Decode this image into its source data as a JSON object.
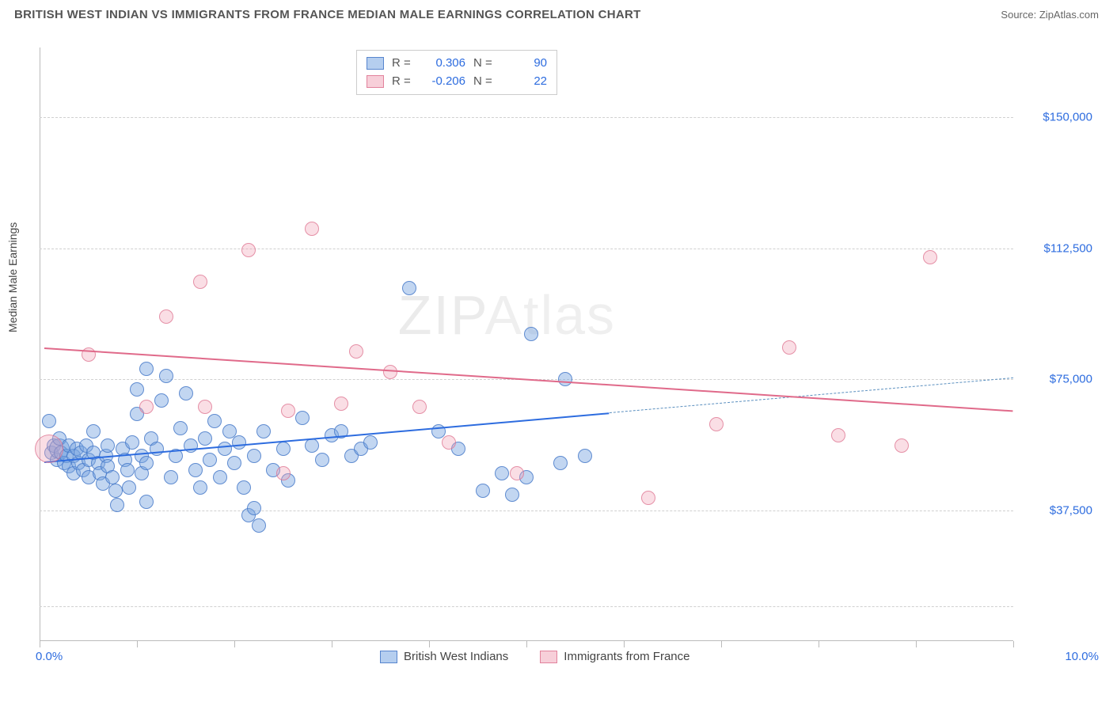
{
  "header": {
    "title": "BRITISH WEST INDIAN VS IMMIGRANTS FROM FRANCE MEDIAN MALE EARNINGS CORRELATION CHART",
    "source_label": "Source:",
    "source_value": "ZipAtlas.com"
  },
  "chart": {
    "type": "scatter",
    "ylabel": "Median Male Earnings",
    "background_color": "#ffffff",
    "grid_color": "#d0d0d0",
    "axis_color": "#bbbbbb",
    "tick_label_color": "#2d6cdf",
    "xlim": [
      0,
      10
    ],
    "ylim": [
      0,
      170000
    ],
    "x_tick_positions": [
      0,
      1,
      2,
      3,
      4,
      5,
      6,
      7,
      8,
      9,
      10
    ],
    "x_range_labels": {
      "left": "0.0%",
      "right": "10.0%"
    },
    "y_ticks": [
      {
        "value": 37500,
        "label": "$37,500"
      },
      {
        "value": 75000,
        "label": "$75,000"
      },
      {
        "value": 112500,
        "label": "$112,500"
      },
      {
        "value": 150000,
        "label": "$150,000"
      }
    ],
    "y_gridlines": [
      10000,
      37500,
      75000,
      112500,
      150000
    ],
    "point_radius_default": 9,
    "series": [
      {
        "name": "British West Indians",
        "color_fill": "rgba(120,165,225,0.45)",
        "color_stroke": "rgba(70,120,200,0.8)",
        "R": "0.306",
        "N": "90",
        "trend": {
          "x1": 0.05,
          "y1": 51500,
          "x2": 5.85,
          "y2": 65500,
          "style": "solid",
          "color": "#2d6cdf"
        },
        "trend_ext": {
          "x1": 5.85,
          "y1": 65500,
          "x2": 10.0,
          "y2": 75500,
          "style": "dashed",
          "color": "#5a8fbf"
        },
        "points": [
          {
            "x": 0.1,
            "y": 63000
          },
          {
            "x": 0.12,
            "y": 54000
          },
          {
            "x": 0.15,
            "y": 56000
          },
          {
            "x": 0.18,
            "y": 52000
          },
          {
            "x": 0.2,
            "y": 55000,
            "r": 13
          },
          {
            "x": 0.2,
            "y": 58000
          },
          {
            "x": 0.22,
            "y": 54000
          },
          {
            "x": 0.25,
            "y": 51000
          },
          {
            "x": 0.28,
            "y": 53000
          },
          {
            "x": 0.3,
            "y": 56000
          },
          {
            "x": 0.3,
            "y": 50000
          },
          {
            "x": 0.35,
            "y": 53000
          },
          {
            "x": 0.35,
            "y": 48000
          },
          {
            "x": 0.38,
            "y": 55000
          },
          {
            "x": 0.4,
            "y": 51000
          },
          {
            "x": 0.42,
            "y": 54000
          },
          {
            "x": 0.45,
            "y": 49000
          },
          {
            "x": 0.48,
            "y": 56000
          },
          {
            "x": 0.5,
            "y": 52000
          },
          {
            "x": 0.5,
            "y": 47000
          },
          {
            "x": 0.55,
            "y": 54000
          },
          {
            "x": 0.55,
            "y": 60000
          },
          {
            "x": 0.6,
            "y": 51000
          },
          {
            "x": 0.62,
            "y": 48000
          },
          {
            "x": 0.65,
            "y": 45000
          },
          {
            "x": 0.68,
            "y": 53000
          },
          {
            "x": 0.7,
            "y": 56000
          },
          {
            "x": 0.7,
            "y": 50000
          },
          {
            "x": 0.75,
            "y": 47000
          },
          {
            "x": 0.78,
            "y": 43000
          },
          {
            "x": 0.8,
            "y": 39000
          },
          {
            "x": 0.85,
            "y": 55000
          },
          {
            "x": 0.88,
            "y": 52000
          },
          {
            "x": 0.9,
            "y": 49000
          },
          {
            "x": 0.92,
            "y": 44000
          },
          {
            "x": 0.95,
            "y": 57000
          },
          {
            "x": 1.0,
            "y": 72000
          },
          {
            "x": 1.0,
            "y": 65000
          },
          {
            "x": 1.05,
            "y": 53000
          },
          {
            "x": 1.05,
            "y": 48000
          },
          {
            "x": 1.1,
            "y": 78000
          },
          {
            "x": 1.1,
            "y": 51000
          },
          {
            "x": 1.1,
            "y": 40000
          },
          {
            "x": 1.15,
            "y": 58000
          },
          {
            "x": 1.2,
            "y": 55000
          },
          {
            "x": 1.25,
            "y": 69000
          },
          {
            "x": 1.3,
            "y": 76000
          },
          {
            "x": 1.35,
            "y": 47000
          },
          {
            "x": 1.4,
            "y": 53000
          },
          {
            "x": 1.45,
            "y": 61000
          },
          {
            "x": 1.5,
            "y": 71000
          },
          {
            "x": 1.55,
            "y": 56000
          },
          {
            "x": 1.6,
            "y": 49000
          },
          {
            "x": 1.65,
            "y": 44000
          },
          {
            "x": 1.7,
            "y": 58000
          },
          {
            "x": 1.75,
            "y": 52000
          },
          {
            "x": 1.8,
            "y": 63000
          },
          {
            "x": 1.85,
            "y": 47000
          },
          {
            "x": 1.9,
            "y": 55000
          },
          {
            "x": 1.95,
            "y": 60000
          },
          {
            "x": 2.0,
            "y": 51000
          },
          {
            "x": 2.05,
            "y": 57000
          },
          {
            "x": 2.1,
            "y": 44000
          },
          {
            "x": 2.15,
            "y": 36000
          },
          {
            "x": 2.2,
            "y": 38000
          },
          {
            "x": 2.2,
            "y": 53000
          },
          {
            "x": 2.25,
            "y": 33000
          },
          {
            "x": 2.3,
            "y": 60000
          },
          {
            "x": 2.4,
            "y": 49000
          },
          {
            "x": 2.5,
            "y": 55000
          },
          {
            "x": 2.55,
            "y": 46000
          },
          {
            "x": 2.7,
            "y": 64000
          },
          {
            "x": 2.8,
            "y": 56000
          },
          {
            "x": 2.9,
            "y": 52000
          },
          {
            "x": 3.0,
            "y": 59000
          },
          {
            "x": 3.1,
            "y": 60000
          },
          {
            "x": 3.2,
            "y": 53000
          },
          {
            "x": 3.3,
            "y": 55000
          },
          {
            "x": 3.4,
            "y": 57000
          },
          {
            "x": 3.8,
            "y": 101000
          },
          {
            "x": 4.1,
            "y": 60000
          },
          {
            "x": 4.3,
            "y": 55000
          },
          {
            "x": 4.55,
            "y": 43000
          },
          {
            "x": 4.75,
            "y": 48000
          },
          {
            "x": 4.85,
            "y": 42000
          },
          {
            "x": 5.0,
            "y": 47000
          },
          {
            "x": 5.05,
            "y": 88000
          },
          {
            "x": 5.35,
            "y": 51000
          },
          {
            "x": 5.4,
            "y": 75000
          },
          {
            "x": 5.6,
            "y": 53000
          }
        ]
      },
      {
        "name": "Immigrants from France",
        "color_fill": "rgba(240,160,180,0.35)",
        "color_stroke": "rgba(220,110,140,0.7)",
        "R": "-0.206",
        "N": "22",
        "trend": {
          "x1": 0.05,
          "y1": 84000,
          "x2": 10.0,
          "y2": 66000,
          "style": "solid",
          "color": "#e06a8a"
        },
        "points": [
          {
            "x": 0.1,
            "y": 55000,
            "r": 18
          },
          {
            "x": 0.5,
            "y": 82000
          },
          {
            "x": 1.1,
            "y": 67000
          },
          {
            "x": 1.3,
            "y": 93000
          },
          {
            "x": 1.65,
            "y": 103000
          },
          {
            "x": 1.7,
            "y": 67000
          },
          {
            "x": 2.15,
            "y": 112000
          },
          {
            "x": 2.5,
            "y": 48000
          },
          {
            "x": 2.55,
            "y": 66000
          },
          {
            "x": 2.8,
            "y": 118000
          },
          {
            "x": 3.1,
            "y": 68000
          },
          {
            "x": 3.25,
            "y": 83000
          },
          {
            "x": 3.6,
            "y": 77000
          },
          {
            "x": 3.9,
            "y": 67000
          },
          {
            "x": 4.2,
            "y": 57000
          },
          {
            "x": 4.9,
            "y": 48000
          },
          {
            "x": 6.25,
            "y": 41000
          },
          {
            "x": 6.95,
            "y": 62000
          },
          {
            "x": 7.7,
            "y": 84000
          },
          {
            "x": 8.2,
            "y": 59000
          },
          {
            "x": 8.85,
            "y": 56000
          },
          {
            "x": 9.15,
            "y": 110000
          }
        ]
      }
    ],
    "legend_top": {
      "rows": [
        {
          "swatch": "blue",
          "r_label": "R =",
          "r_value": "0.306",
          "n_label": "N =",
          "n_value": "90"
        },
        {
          "swatch": "pink",
          "r_label": "R =",
          "r_value": "-0.206",
          "n_label": "N =",
          "n_value": "22"
        }
      ]
    },
    "legend_bottom": [
      {
        "swatch": "blue",
        "label": "British West Indians"
      },
      {
        "swatch": "pink",
        "label": "Immigrants from France"
      }
    ],
    "watermark": {
      "part1": "ZIP",
      "part2": "Atlas"
    }
  }
}
